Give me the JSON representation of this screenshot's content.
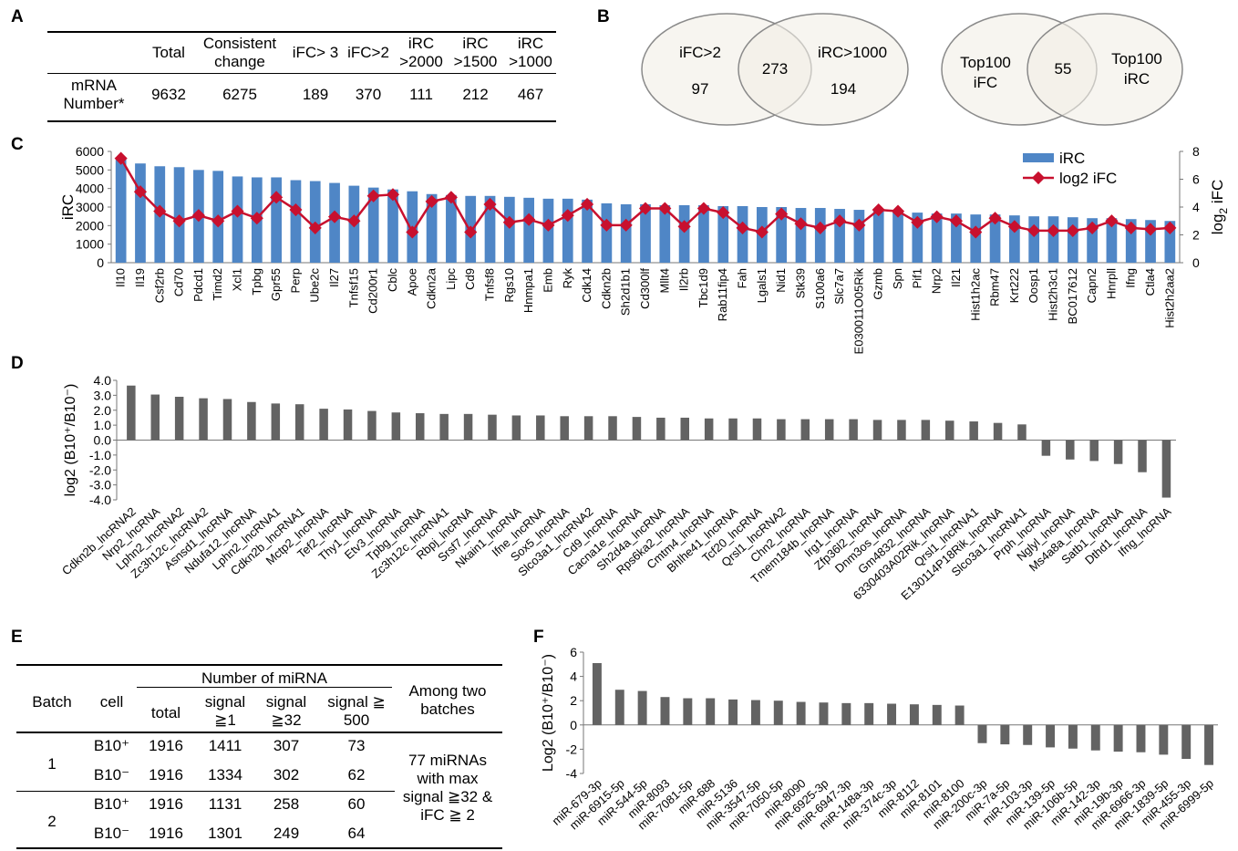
{
  "panels": {
    "a": "A",
    "b": "B",
    "c": "C",
    "d": "D",
    "e": "E",
    "f": "F"
  },
  "table_a": {
    "headers": [
      "Total",
      "Consistent change",
      "iFC> 3",
      "iFC>2",
      "iRC >2000",
      "iRC >1500",
      "iRC >1000"
    ],
    "row_label": "mRNA Number*",
    "values": [
      "9632",
      "6275",
      "189",
      "370",
      "111",
      "212",
      "467"
    ]
  },
  "venn1": {
    "left_label": "iFC>2",
    "right_label": "iRC>1000",
    "left_only": "97",
    "overlap": "273",
    "right_only": "194"
  },
  "venn2": {
    "left_label": "Top100 iFC",
    "right_label": "Top100 iRC",
    "overlap": "55"
  },
  "table_e": {
    "col_batch": "Batch",
    "col_cell": "cell",
    "group_header": "Number of miRNA",
    "sub_headers": [
      "total",
      "signal ≧1",
      "signal ≧32",
      "signal ≧ 500"
    ],
    "among_header": "Among two batches",
    "rows": [
      {
        "batch": "1",
        "cell": "B10⁺",
        "values": [
          "1916",
          "1411",
          "307",
          "73"
        ]
      },
      {
        "batch": "",
        "cell": "B10⁻",
        "values": [
          "1916",
          "1334",
          "302",
          "62"
        ]
      },
      {
        "batch": "2",
        "cell": "B10⁺",
        "values": [
          "1916",
          "1131",
          "258",
          "60"
        ]
      },
      {
        "batch": "",
        "cell": "B10⁻",
        "values": [
          "1916",
          "1301",
          "249",
          "64"
        ]
      }
    ],
    "note": "77 miRNAs with max signal ≧32 & iFC ≧ 2"
  },
  "chart_data": [
    {
      "id": "C",
      "type": "bar",
      "ylabel": "iRC",
      "y2label": "log2 iFC",
      "ylim": [
        0,
        6000
      ],
      "y2lim": [
        0,
        8
      ],
      "yticks": [
        "0",
        "1000",
        "2000",
        "3000",
        "4000",
        "5000",
        "6000"
      ],
      "y2ticks": [
        "0",
        "2",
        "4",
        "6",
        "8"
      ],
      "legend": [
        "iRC",
        "log2 iFC"
      ],
      "colors": {
        "bar": "#4f86c6",
        "line": "#c8102e"
      },
      "categories": [
        "Il10",
        "Il19",
        "Csf2rb",
        "Cd70",
        "Pdcd1",
        "Timd2",
        "Xcl1",
        "Tpbg",
        "Gpr55",
        "Perp",
        "Ube2c",
        "Il27",
        "Tnfsf15",
        "Cd200r1",
        "Cblc",
        "Apoe",
        "Cdkn2a",
        "Lipc",
        "Cd9",
        "Tnfsf8",
        "Rgs10",
        "Hnmpa1",
        "Emb",
        "Ryk",
        "Cdk14",
        "Cdkn2b",
        "Sh2d1b1",
        "Cd300lf",
        "Mllt4",
        "Il2rb",
        "Tbc1d9",
        "Rab11fip4",
        "Fah",
        "Lgals1",
        "Nid1",
        "Stk39",
        "S100a6",
        "Slc7a7",
        "E030011O05Rik",
        "Gzmb",
        "Spn",
        "Pif1",
        "Nrp2",
        "Il21",
        "Hist1h2ac",
        "Rbm47",
        "Krt222",
        "Oosp1",
        "Hist2h3c1",
        "BC017612",
        "Capn2",
        "Hnrpll",
        "Ifng",
        "Ctla4",
        "Hist2h2aa2"
      ],
      "series": [
        {
          "name": "iRC",
          "kind": "bar",
          "values": [
            5550,
            5350,
            5200,
            5150,
            5000,
            4950,
            4650,
            4600,
            4600,
            4450,
            4400,
            4300,
            4150,
            4050,
            3950,
            3850,
            3700,
            3650,
            3600,
            3600,
            3550,
            3500,
            3450,
            3450,
            3400,
            3200,
            3150,
            3150,
            3100,
            3100,
            3100,
            3050,
            3050,
            3000,
            3000,
            2950,
            2950,
            2900,
            2850,
            2850,
            2800,
            2700,
            2650,
            2650,
            2600,
            2600,
            2550,
            2500,
            2500,
            2450,
            2400,
            2400,
            2350,
            2300,
            2250
          ]
        },
        {
          "name": "log2 iFC",
          "kind": "line",
          "values": [
            7.5,
            5.1,
            3.7,
            3.0,
            3.4,
            3.0,
            3.7,
            3.2,
            4.7,
            3.8,
            2.5,
            3.3,
            3.0,
            4.8,
            4.9,
            2.2,
            4.4,
            4.7,
            2.2,
            4.2,
            2.9,
            3.1,
            2.7,
            3.4,
            4.2,
            2.7,
            2.7,
            3.9,
            3.9,
            2.6,
            3.9,
            3.6,
            2.5,
            2.2,
            3.5,
            2.8,
            2.5,
            3.0,
            2.7,
            3.8,
            3.7,
            2.9,
            3.3,
            3.0,
            2.2,
            3.2,
            2.6,
            2.3,
            2.3,
            2.3,
            2.5,
            3.0,
            2.5,
            2.4,
            2.5
          ]
        }
      ]
    },
    {
      "id": "D",
      "type": "bar",
      "ylabel": "log2 (B10⁺/B10⁻)",
      "ylim": [
        -4.0,
        4.0
      ],
      "yticks": [
        "-4.0",
        "-3.0",
        "-2.0",
        "-1.0",
        "0.0",
        "1.0",
        "2.0",
        "3.0",
        "4.0"
      ],
      "colors": {
        "bar": "#636363"
      },
      "categories": [
        "Cdkn2b_lncRNA2",
        "Nrp2_lncRNA",
        "Lphn2_lncRNA2",
        "Zc3h12c_lncRNA2",
        "Asnsd1_lncRNA",
        "Ndufa12_lncRNA",
        "Lphn2_lncRNA1",
        "Cdkn2b_lncRNA1",
        "Mctp2_lncRNA",
        "Tef2_lncRNA",
        "Thy1_lncRNA",
        "Etv3_lncRNA",
        "Tpbg_lncRNA",
        "Zc3h12c_lncRNA1",
        "Rbpj_lncRNA",
        "Srsf7_lncRNA",
        "Nkain1_lncRNA",
        "Ifne_lncRNA",
        "Sox5_lncRNA",
        "Slco3a1_lncRNA2",
        "Cd9_lncRNA",
        "Cacna1e_lncRNA",
        "Sh2d4a_lncRNA",
        "Rps6ka2_lncRNA",
        "Cmtm4_lncRNA",
        "Bhlhe41_lncRNA",
        "Tcf20_lncRNA",
        "Qrsl1_lncRNA2",
        "Chn2_lncRNA",
        "Tmem184b_lncRNA",
        "Irg1_lncRNA",
        "Zfp36l2_lncRNA",
        "Dnm3os_lncRNA",
        "Gm4832_lncRNA",
        "6330403A02Rik_lncRNA",
        "Qrsl1_lncRNA1",
        "E130114P18Rik_lncRNA",
        "Slco3a1_lncRNA1",
        "Prph_lncRNA",
        "Nglyl_lncRNA",
        "Ms4a8a_lncRNA",
        "Satb1_lncRNA",
        "Dthd1_lncRNA",
        "Ifng_lncRNA"
      ],
      "values": [
        3.65,
        3.05,
        2.9,
        2.8,
        2.75,
        2.55,
        2.45,
        2.4,
        2.1,
        2.05,
        1.95,
        1.85,
        1.8,
        1.75,
        1.75,
        1.7,
        1.65,
        1.65,
        1.6,
        1.6,
        1.6,
        1.55,
        1.5,
        1.5,
        1.45,
        1.45,
        1.45,
        1.4,
        1.4,
        1.4,
        1.4,
        1.35,
        1.35,
        1.35,
        1.3,
        1.25,
        1.15,
        1.05,
        -1.05,
        -1.3,
        -1.4,
        -1.6,
        -2.15,
        -3.85
      ]
    },
    {
      "id": "F",
      "type": "bar",
      "ylabel": "Log2 (B10⁺/B10⁻)",
      "ylim": [
        -4,
        6
      ],
      "yticks": [
        "-4",
        "-2",
        "0",
        "2",
        "4",
        "6"
      ],
      "colors": {
        "bar": "#636363"
      },
      "categories": [
        "miR-679-3p",
        "miR-6915-5p",
        "miR-544-5p",
        "miR-8093",
        "miR-7081-5p",
        "miR-688",
        "miR-5136",
        "miR-3547-5p",
        "miR-7050-5p",
        "miR-8090",
        "miR-6925-3p",
        "miR-6947-3p",
        "miR-148a-3p",
        "miR-374c-3p",
        "miR-8112",
        "miR-8101",
        "miR-8100",
        "miR-200c-3p",
        "miR-7a-5p",
        "miR-103-3p",
        "miR-139-5p",
        "miR-106b-5p",
        "miR-142-3p",
        "miR-19b-3p",
        "miR-6966-3p",
        "miR-1839-5p",
        "miR-455-3p",
        "miR-6999-5p"
      ],
      "values": [
        5.1,
        2.9,
        2.8,
        2.3,
        2.2,
        2.2,
        2.1,
        2.05,
        2.0,
        1.9,
        1.85,
        1.8,
        1.8,
        1.75,
        1.7,
        1.65,
        1.6,
        -1.5,
        -1.6,
        -1.65,
        -1.85,
        -1.95,
        -2.1,
        -2.2,
        -2.25,
        -2.45,
        -2.8,
        -3.3
      ]
    }
  ]
}
